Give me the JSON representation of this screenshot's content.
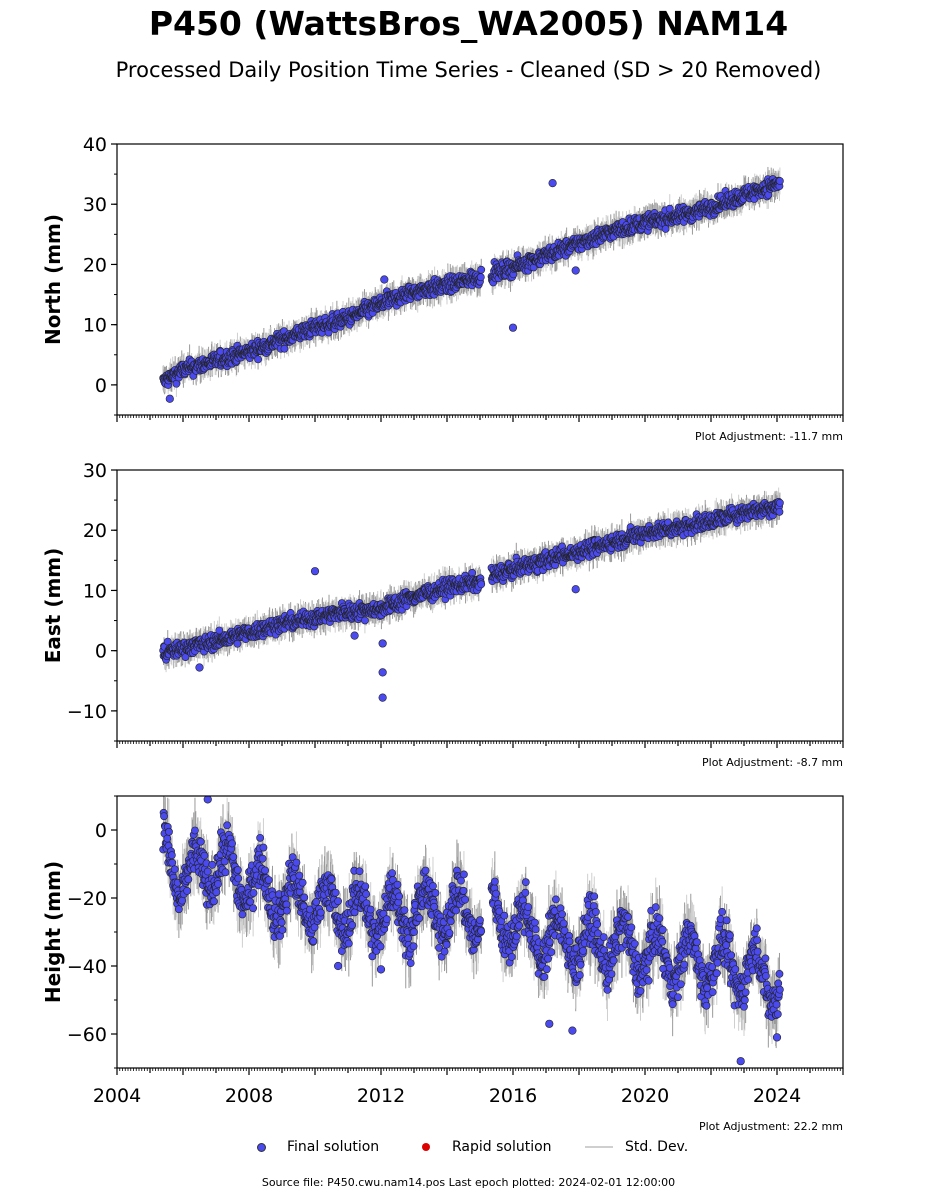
{
  "header": {
    "title": "P450 (WattsBros_WA2005) NAM14",
    "subtitle": "Processed Daily Position Time Series - Cleaned (SD > 20 Removed)"
  },
  "legend": {
    "final": "Final solution",
    "rapid": "Rapid solution",
    "std": "Std. Dev."
  },
  "footer": {
    "source": "Source file: P450.cwu.nam14.pos  Last epoch plotted: 2024-02-01 12:00:00"
  },
  "colors": {
    "final": "#4a4aef",
    "rapid": "#dd0000",
    "std": "#bdbdbd"
  },
  "chart_data": [
    {
      "type": "scatter",
      "ylabel": "North (mm)",
      "adjustment": "Plot Adjustment: -11.7 mm",
      "xlim": [
        2004,
        2026
      ],
      "ylim": [
        -5,
        40
      ],
      "yticks": [
        0,
        10,
        20,
        30,
        40
      ],
      "ytick_labels": [
        "0",
        "10",
        "20",
        "30",
        "40"
      ],
      "x": [
        2005.4,
        2006,
        2007,
        2008,
        2009,
        2010,
        2011,
        2012,
        2013,
        2014,
        2015.0,
        2015.4,
        2016,
        2017,
        2018,
        2019,
        2020,
        2021,
        2022,
        2023,
        2024.05
      ],
      "y": [
        0.5,
        2.5,
        4.0,
        5.5,
        7.5,
        9.5,
        11.0,
        13.5,
        15.5,
        16.5,
        18.0,
        18.5,
        19.5,
        21.5,
        23.5,
        25.5,
        27.0,
        28.0,
        29.5,
        31.5,
        33.5
      ],
      "outliers": [
        [
          2005.6,
          -2.3
        ],
        [
          2016.0,
          9.5
        ],
        [
          2017.2,
          33.5
        ],
        [
          2017.9,
          19.0
        ],
        [
          2012.1,
          17.5
        ]
      ]
    },
    {
      "type": "scatter",
      "ylabel": "East (mm)",
      "adjustment": "Plot Adjustment: -8.7 mm",
      "xlim": [
        2004,
        2026
      ],
      "ylim": [
        -15,
        30
      ],
      "yticks": [
        -10,
        0,
        10,
        20,
        30
      ],
      "ytick_labels": [
        "−10",
        "0",
        "10",
        "20",
        "30"
      ],
      "x": [
        2005.4,
        2006,
        2007,
        2008,
        2009,
        2010,
        2011,
        2012,
        2013,
        2014,
        2015.0,
        2015.4,
        2016,
        2017,
        2018,
        2019,
        2020,
        2021,
        2022,
        2023,
        2024.05
      ],
      "y": [
        -0.5,
        0.5,
        1.5,
        3.0,
        4.5,
        5.5,
        6.5,
        7.0,
        9.0,
        10.5,
        11.5,
        12.5,
        13.5,
        15.0,
        16.5,
        18.0,
        19.5,
        20.5,
        21.5,
        23.0,
        24.0
      ],
      "outliers": [
        [
          2010.0,
          13.2
        ],
        [
          2012.05,
          1.2
        ],
        [
          2012.05,
          -3.6
        ],
        [
          2012.05,
          -7.8
        ],
        [
          2011.2,
          2.5
        ],
        [
          2017.9,
          10.2
        ],
        [
          2006.5,
          -2.8
        ]
      ]
    },
    {
      "type": "scatter",
      "ylabel": "Height (mm)",
      "adjustment": "Plot Adjustment: 22.2 mm",
      "xlim": [
        2004,
        2026
      ],
      "ylim": [
        -70,
        10
      ],
      "yticks": [
        -60,
        -40,
        -20,
        0
      ],
      "ytick_labels": [
        "−60",
        "−40",
        "−20",
        "0"
      ],
      "xticks": [
        2004,
        2008,
        2012,
        2016,
        2020,
        2024
      ],
      "xtick_labels": [
        "2004",
        "2008",
        "2012",
        "2016",
        "2020",
        "2024"
      ],
      "x": [
        2005.4,
        2006,
        2007,
        2008,
        2009,
        2010,
        2011,
        2012,
        2013,
        2014,
        2015.0,
        2015.4,
        2016,
        2017,
        2018,
        2019,
        2020,
        2021,
        2022,
        2023,
        2024.05
      ],
      "y": [
        -5,
        -15,
        -10,
        -15,
        -20,
        -22,
        -24,
        -25,
        -24,
        -24,
        -25,
        -25,
        -28,
        -32,
        -33,
        -34,
        -36,
        -38,
        -39,
        -41,
        -45
      ],
      "outliers": [
        [
          2006.75,
          9
        ],
        [
          2012.0,
          -41
        ],
        [
          2017.8,
          -59
        ],
        [
          2017.1,
          -57
        ],
        [
          2022.9,
          -68
        ],
        [
          2024.0,
          -61
        ],
        [
          2010.7,
          -40
        ]
      ]
    }
  ]
}
